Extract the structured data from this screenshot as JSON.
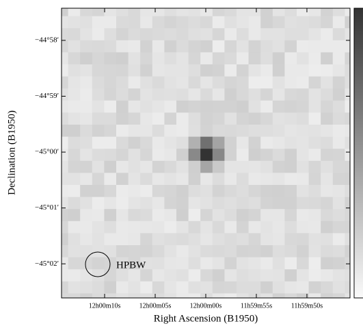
{
  "chart_data": {
    "type": "image",
    "x_label": "Right Ascension (B1950)",
    "y_label": "Declination (B1950)",
    "annotation": "HPBW",
    "xlim": [
      43214.26,
      43185.74
    ],
    "xticks": [
      {
        "value": 43210,
        "label": "12h00m10s"
      },
      {
        "value": 43205,
        "label": "12h00m05s"
      },
      {
        "value": 43200,
        "label": "12h00m00s"
      },
      {
        "value": 43195,
        "label": "11h59m55s"
      },
      {
        "value": 43190,
        "label": "11h59m50s"
      }
    ],
    "ylim": [
      -45.0435,
      -44.95708
    ],
    "yticks": [
      {
        "value": -44.96667,
        "label": "−44°58′"
      },
      {
        "value": -44.98333,
        "label": "−44°59′"
      },
      {
        "value": -45,
        "label": "−45°00′"
      },
      {
        "value": -45.01667,
        "label": "−45°01′"
      },
      {
        "value": -45.03333,
        "label": "−45°02′"
      }
    ]
  }
}
